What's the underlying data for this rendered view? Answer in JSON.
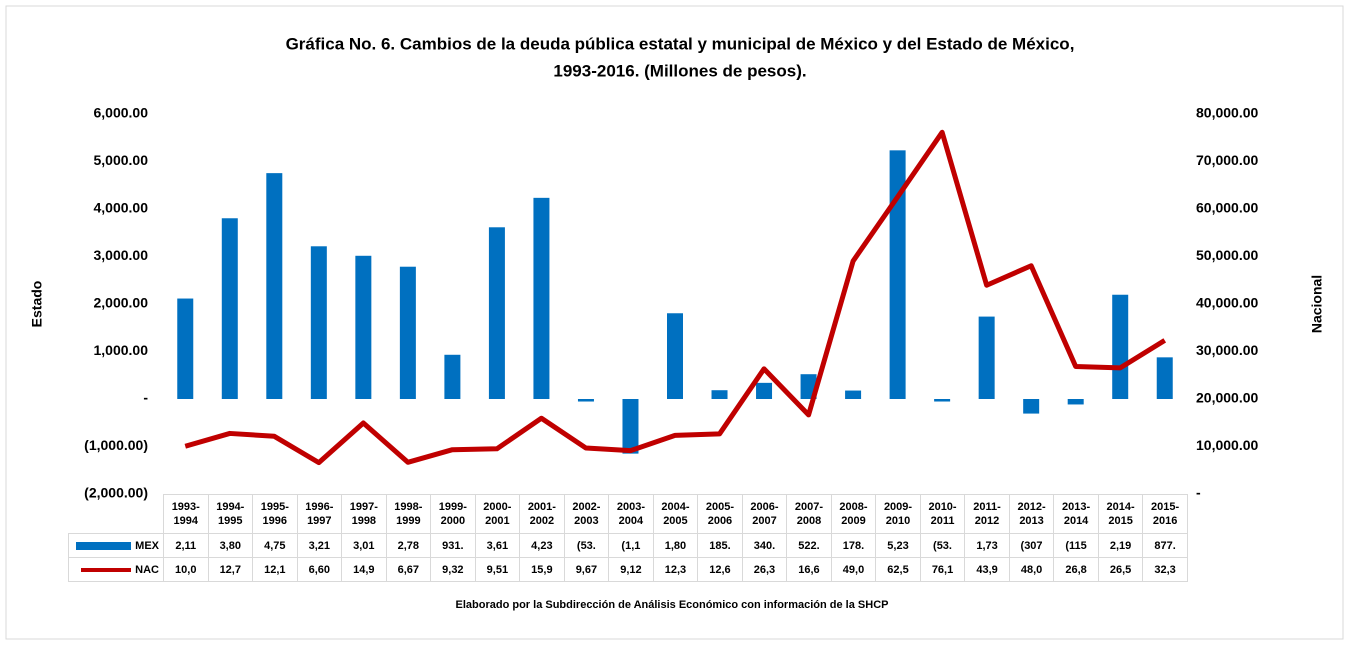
{
  "chart_data": {
    "type": "bar",
    "title": [
      "Gráfica No. 6. Cambios de la deuda pública estatal y municipal de México y del Estado de México,",
      "1993-2016. (Millones de pesos)."
    ],
    "y_label": "Estado",
    "y2_label": "Nacional",
    "note": "Elaborado por la Subdirección de Análisis Económico con información de la SHCP",
    "categories": [
      "1993-1994",
      "1994-1995",
      "1995-1996",
      "1996-1997",
      "1997-1998",
      "1998-1999",
      "1999-2000",
      "2000-2001",
      "2001-2002",
      "2002-2003",
      "2003-2004",
      "2004-2005",
      "2005-2006",
      "2006-2007",
      "2007-2008",
      "2008-2009",
      "2009-2010",
      "2010-2011",
      "2011-2012",
      "2012-2013",
      "2013-2014",
      "2014-2015",
      "2015-2016"
    ],
    "series": [
      {
        "name": "MEX",
        "type": "bar",
        "color": "#0070c0",
        "values": [
          2115,
          3805,
          4755,
          3215,
          3015,
          2785,
          931,
          3615,
          4235,
          -53,
          -1150,
          1805,
          185,
          340,
          522,
          178,
          5235,
          -53,
          1735,
          -307,
          -115,
          2195,
          877
        ],
        "value_labels": [
          "2,11",
          "3,80",
          "4,75",
          "3,21",
          "3,01",
          "2,78",
          "931.",
          "3,61",
          "4,23",
          "(53.",
          "(1,1",
          "1,80",
          "185.",
          "340.",
          "522.",
          "178.",
          "5,23",
          "(53.",
          "1,73",
          "(307",
          "(115",
          "2,19",
          "877."
        ]
      },
      {
        "name": "NAC",
        "type": "line",
        "axis": "y2",
        "color": "#c00000",
        "values": [
          10050,
          12750,
          12150,
          6605,
          14950,
          6675,
          9325,
          9515,
          15950,
          9675,
          9125,
          12350,
          12650,
          26350,
          16650,
          49050,
          62550,
          76150,
          43950,
          48050,
          26850,
          26550,
          32350
        ],
        "value_labels": [
          "10,0",
          "12,7",
          "12,1",
          "6,60",
          "14,9",
          "6,67",
          "9,32",
          "9,51",
          "15,9",
          "9,67",
          "9,12",
          "12,3",
          "12,6",
          "26,3",
          "16,6",
          "49,0",
          "62,5",
          "76,1",
          "43,9",
          "48,0",
          "26,8",
          "26,5",
          "32,3"
        ]
      }
    ],
    "ylim": [
      -2000,
      6000
    ],
    "yticks": [
      {
        "value": -2000,
        "label": "(2,000.00)"
      },
      {
        "value": -1000,
        "label": "(1,000.00)"
      },
      {
        "value": 0,
        "label": "-"
      },
      {
        "value": 1000,
        "label": "1,000.00"
      },
      {
        "value": 2000,
        "label": "2,000.00"
      },
      {
        "value": 3000,
        "label": "3,000.00"
      },
      {
        "value": 4000,
        "label": "4,000.00"
      },
      {
        "value": 5000,
        "label": "5,000.00"
      },
      {
        "value": 6000,
        "label": "6,000.00"
      }
    ],
    "y2lim": [
      0,
      80000
    ],
    "y2ticks": [
      {
        "value": 0,
        "label": "-"
      },
      {
        "value": 10000,
        "label": "10,000.00"
      },
      {
        "value": 20000,
        "label": "20,000.00"
      },
      {
        "value": 30000,
        "label": "30,000.00"
      },
      {
        "value": 40000,
        "label": "40,000.00"
      },
      {
        "value": 50000,
        "label": "50,000.00"
      },
      {
        "value": 60000,
        "label": "60,000.00"
      },
      {
        "value": 70000,
        "label": "70,000.00"
      },
      {
        "value": 80000,
        "label": "80,000.00"
      }
    ]
  }
}
